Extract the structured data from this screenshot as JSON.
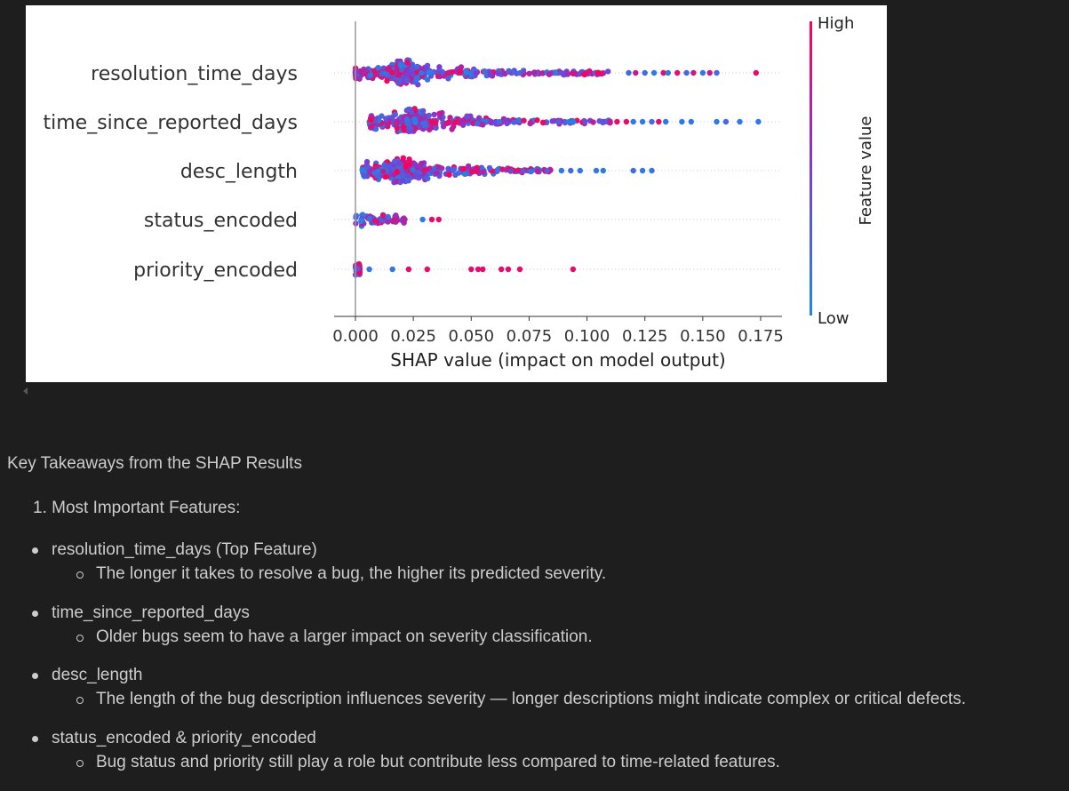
{
  "chart_data": {
    "type": "scatter",
    "xlabel": "SHAP value (impact on model output)",
    "x_ticks": [
      "0.000",
      "0.025",
      "0.050",
      "0.075",
      "0.100",
      "0.125",
      "0.150",
      "0.175"
    ],
    "xlim": [
      -0.009,
      0.183
    ],
    "features": [
      {
        "name": "resolution_time_days",
        "dense_range": [
          0.0,
          0.11
        ],
        "peak": 0.022,
        "max_width": 0.9,
        "tail": [
          {
            "x": 0.118,
            "value": 0.2
          },
          {
            "x": 0.121,
            "value": 0.8
          },
          {
            "x": 0.125,
            "value": 0.2
          },
          {
            "x": 0.129,
            "value": 0.1
          },
          {
            "x": 0.133,
            "value": 0.9
          },
          {
            "x": 0.135,
            "value": 0.1
          },
          {
            "x": 0.139,
            "value": 0.9
          },
          {
            "x": 0.143,
            "value": 0.2
          },
          {
            "x": 0.146,
            "value": 0.8
          },
          {
            "x": 0.15,
            "value": 0.1
          },
          {
            "x": 0.153,
            "value": 0.8
          },
          {
            "x": 0.156,
            "value": 0.2
          },
          {
            "x": 0.173,
            "value": 0.9
          }
        ]
      },
      {
        "name": "time_since_reported_days",
        "dense_range": [
          0.006,
          0.11
        ],
        "peak": 0.025,
        "max_width": 1.0,
        "tail": [
          {
            "x": 0.113,
            "value": 0.9
          },
          {
            "x": 0.117,
            "value": 0.9
          },
          {
            "x": 0.12,
            "value": 0.1
          },
          {
            "x": 0.124,
            "value": 0.1
          },
          {
            "x": 0.128,
            "value": 0.2
          },
          {
            "x": 0.131,
            "value": 0.9
          },
          {
            "x": 0.134,
            "value": 0.1
          },
          {
            "x": 0.141,
            "value": 0.1
          },
          {
            "x": 0.145,
            "value": 0.1
          },
          {
            "x": 0.156,
            "value": 0.1
          },
          {
            "x": 0.16,
            "value": 0.2
          },
          {
            "x": 0.166,
            "value": 0.1
          },
          {
            "x": 0.174,
            "value": 0.1
          }
        ]
      },
      {
        "name": "desc_length",
        "dense_range": [
          0.003,
          0.085
        ],
        "peak": 0.02,
        "max_width": 0.95,
        "tail": [
          {
            "x": 0.089,
            "value": 0.1
          },
          {
            "x": 0.093,
            "value": 0.2
          },
          {
            "x": 0.097,
            "value": 0.1
          },
          {
            "x": 0.104,
            "value": 0.1
          },
          {
            "x": 0.107,
            "value": 0.1
          },
          {
            "x": 0.12,
            "value": 0.2
          },
          {
            "x": 0.124,
            "value": 0.1
          },
          {
            "x": 0.128,
            "value": 0.1
          }
        ]
      },
      {
        "name": "status_encoded",
        "dense_range": [
          0.0,
          0.022
        ],
        "peak": 0.001,
        "max_width": 0.6,
        "tail": [
          {
            "x": 0.029,
            "value": 0.1
          },
          {
            "x": 0.033,
            "value": 0.9
          },
          {
            "x": 0.036,
            "value": 0.9
          }
        ]
      },
      {
        "name": "priority_encoded",
        "dense_range": [
          0.0,
          0.002
        ],
        "peak": 0.0,
        "max_width": 0.55,
        "tail": [
          {
            "x": 0.006,
            "value": 0.1
          },
          {
            "x": 0.016,
            "value": 0.1
          },
          {
            "x": 0.023,
            "value": 0.9
          },
          {
            "x": 0.031,
            "value": 0.9
          },
          {
            "x": 0.05,
            "value": 0.9
          },
          {
            "x": 0.053,
            "value": 0.9
          },
          {
            "x": 0.055,
            "value": 0.9
          },
          {
            "x": 0.063,
            "value": 0.9
          },
          {
            "x": 0.066,
            "value": 0.9
          },
          {
            "x": 0.071,
            "value": 0.9
          },
          {
            "x": 0.094,
            "value": 0.9
          }
        ]
      }
    ],
    "colorbar": {
      "title": "Feature value",
      "high": "High",
      "low": "Low",
      "low_color": "#1e88e5",
      "high_color": "#ff0052"
    }
  },
  "document": {
    "heading": "Key Takeaways from the SHAP Results",
    "ordered_item": "1. Most Important Features:",
    "bullets": [
      {
        "title": "resolution_time_days (Top Feature)",
        "detail": "The longer it takes to resolve a bug, the higher its predicted severity."
      },
      {
        "title": "time_since_reported_days",
        "detail": "Older bugs seem to have a larger impact on severity classification."
      },
      {
        "title": "desc_length",
        "detail": "The length of the bug description influences severity — longer descriptions might indicate complex or critical defects."
      },
      {
        "title": "status_encoded & priority_encoded",
        "detail": "Bug status and priority still play a role but contribute less compared to time-related features."
      }
    ]
  },
  "colors": {
    "background": "#1e1e1e",
    "text": "#cccccc",
    "plot_bg": "#ffffff"
  }
}
